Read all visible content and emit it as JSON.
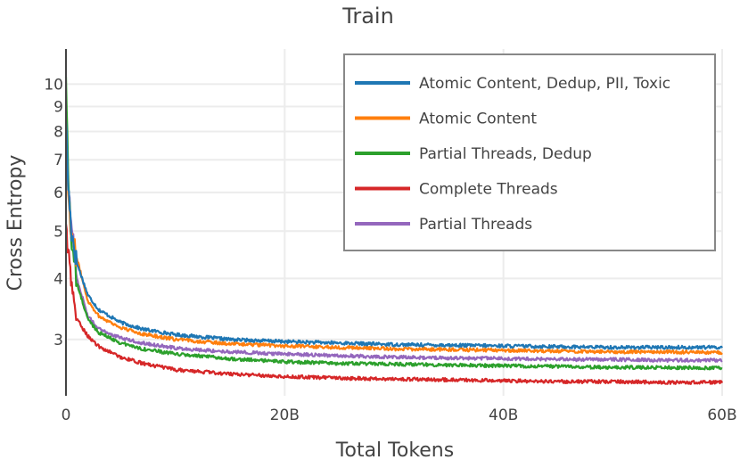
{
  "chart_data": {
    "type": "line",
    "title": "Train",
    "xlabel": "Total Tokens",
    "ylabel": "Cross Entropy",
    "xlim": [
      0,
      60
    ],
    "ylim": [
      2.3,
      11.8
    ],
    "y_scale": "log",
    "grid": true,
    "legend_position": "top-right",
    "x_ticks": [
      {
        "value": 0,
        "label": "0"
      },
      {
        "value": 20,
        "label": "20B"
      },
      {
        "value": 40,
        "label": "40B"
      },
      {
        "value": 60,
        "label": "60B"
      }
    ],
    "y_ticks": [
      {
        "value": 3,
        "label": "3"
      },
      {
        "value": 4,
        "label": "4"
      },
      {
        "value": 5,
        "label": "5"
      },
      {
        "value": 6,
        "label": "6"
      },
      {
        "value": 7,
        "label": "7"
      },
      {
        "value": 8,
        "label": "8"
      },
      {
        "value": 9,
        "label": "9"
      },
      {
        "value": 10,
        "label": "10"
      }
    ],
    "series": [
      {
        "name": "Atomic Content, Dedup, PII, Toxic",
        "color": "#1f77b4",
        "x": [
          0,
          0.2,
          0.5,
          1,
          2,
          3,
          5,
          7,
          10,
          15,
          20,
          25,
          30,
          35,
          40,
          45,
          50,
          55,
          60
        ],
        "y": [
          8.6,
          6.2,
          5.0,
          4.3,
          3.7,
          3.45,
          3.25,
          3.15,
          3.07,
          3.0,
          2.97,
          2.95,
          2.93,
          2.92,
          2.91,
          2.9,
          2.89,
          2.89,
          2.89
        ]
      },
      {
        "name": "Atomic Content",
        "color": "#ff7f0e",
        "x": [
          0,
          0.2,
          0.5,
          1,
          2,
          3,
          5,
          7,
          10,
          15,
          20,
          25,
          30,
          35,
          40,
          45,
          50,
          55,
          60
        ],
        "y": [
          8.3,
          6.0,
          4.9,
          4.4,
          3.6,
          3.35,
          3.17,
          3.08,
          3.0,
          2.94,
          2.91,
          2.89,
          2.87,
          2.86,
          2.85,
          2.84,
          2.83,
          2.83,
          2.82
        ]
      },
      {
        "name": "Partial Threads, Dedup",
        "color": "#2ca02c",
        "x": [
          0,
          0.2,
          0.5,
          1,
          2,
          3,
          5,
          7,
          10,
          15,
          20,
          25,
          30,
          35,
          40,
          45,
          50,
          55,
          60
        ],
        "y": [
          10.5,
          6.5,
          4.8,
          3.9,
          3.3,
          3.1,
          2.95,
          2.87,
          2.8,
          2.74,
          2.7,
          2.68,
          2.67,
          2.66,
          2.65,
          2.64,
          2.63,
          2.63,
          2.62
        ]
      },
      {
        "name": "Complete Threads",
        "color": "#d62728",
        "x": [
          0,
          0.2,
          0.5,
          1,
          2,
          3,
          5,
          7,
          10,
          15,
          20,
          25,
          30,
          35,
          40,
          45,
          50,
          55,
          60
        ],
        "y": [
          5.2,
          4.5,
          3.9,
          3.3,
          3.05,
          2.9,
          2.76,
          2.68,
          2.6,
          2.55,
          2.52,
          2.5,
          2.49,
          2.48,
          2.47,
          2.46,
          2.46,
          2.45,
          2.45
        ]
      },
      {
        "name": "Partial Threads",
        "color": "#9467bd",
        "x": [
          0,
          0.2,
          0.5,
          1,
          2,
          3,
          5,
          7,
          10,
          15,
          20,
          25,
          30,
          35,
          40,
          45,
          50,
          55,
          60
        ],
        "y": [
          8.4,
          6.0,
          5.3,
          4.0,
          3.35,
          3.15,
          3.02,
          2.95,
          2.88,
          2.83,
          2.8,
          2.78,
          2.76,
          2.75,
          2.74,
          2.73,
          2.73,
          2.72,
          2.72
        ]
      }
    ]
  }
}
